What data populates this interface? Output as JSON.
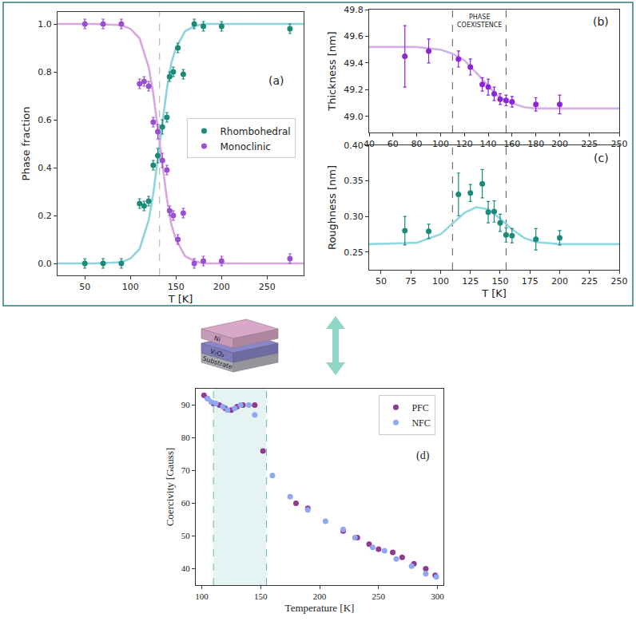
{
  "chart_data": [
    {
      "type": "scatter",
      "panel": "(a)",
      "x_label": "T [K]",
      "y_label": "Phase fraction",
      "xlim": [
        20,
        290
      ],
      "xticks": [
        50,
        100,
        150,
        200,
        250
      ],
      "ylim": [
        -0.05,
        1.05
      ],
      "yticks": [
        {
          "value": 0,
          "label": "0.0"
        },
        0.2,
        0.4,
        0.6,
        0.8,
        {
          "value": 1,
          "label": "1.0"
        }
      ],
      "grid": false,
      "legend": "right",
      "vlines": {
        "x": [
          132
        ],
        "color": "#aaaaaa",
        "line_style": "dashed"
      },
      "series": [
        {
          "type": "line",
          "color": "#8fd3dc",
          "x": [
            20,
            60,
            90,
            100,
            110,
            120,
            125,
            130,
            135,
            140,
            145,
            150,
            160,
            170,
            180,
            200,
            290
          ],
          "values": [
            0,
            0,
            0.005,
            0.02,
            0.06,
            0.18,
            0.29,
            0.44,
            0.59,
            0.73,
            0.84,
            0.9,
            0.97,
            0.99,
            1,
            1,
            1
          ]
        },
        {
          "type": "line",
          "color": "#d9a6e0",
          "x": [
            20,
            60,
            90,
            100,
            110,
            120,
            125,
            130,
            135,
            140,
            145,
            150,
            160,
            170,
            180,
            200,
            290
          ],
          "values": [
            1,
            1,
            0.995,
            0.98,
            0.94,
            0.82,
            0.71,
            0.56,
            0.41,
            0.27,
            0.16,
            0.1,
            0.03,
            0.01,
            0,
            0,
            0
          ]
        },
        {
          "type": "scatter",
          "name": "Rhombohedral",
          "color": "#1b8a78",
          "marker": "circle",
          "x": [
            50,
            70,
            90,
            110,
            115,
            120,
            125,
            130,
            135,
            140,
            143,
            147,
            152,
            158,
            170,
            180,
            200,
            275
          ],
          "values": [
            0,
            0,
            0,
            0.25,
            0.24,
            0.26,
            0.41,
            0.45,
            0.57,
            0.61,
            0.78,
            0.8,
            0.9,
            0.79,
            1.0,
            0.99,
            0.99,
            0.98
          ],
          "errors": [
            0.02,
            0.02,
            0.02,
            0.02,
            0.02,
            0.02,
            0.02,
            0.03,
            0.03,
            0.02,
            0.02,
            0.02,
            0.02,
            0.02,
            0.02,
            0.02,
            0.02,
            0.02
          ]
        },
        {
          "type": "scatter",
          "name": "Monoclinic",
          "color": "#9a4fd0",
          "marker": "circle",
          "x": [
            50,
            70,
            90,
            110,
            115,
            120,
            125,
            130,
            135,
            140,
            143,
            147,
            152,
            158,
            170,
            180,
            200,
            275
          ],
          "values": [
            1,
            1,
            1,
            0.75,
            0.76,
            0.74,
            0.59,
            0.55,
            0.43,
            0.39,
            0.22,
            0.2,
            0.1,
            0.21,
            0.0,
            0.01,
            0.01,
            0.02
          ],
          "errors": [
            0.02,
            0.02,
            0.02,
            0.02,
            0.02,
            0.02,
            0.02,
            0.03,
            0.03,
            0.02,
            0.02,
            0.02,
            0.02,
            0.02,
            0.02,
            0.02,
            0.02,
            0.02
          ]
        }
      ]
    },
    {
      "type": "scatter",
      "panel": "(b)",
      "y_label": "Thickness [nm]",
      "xlim": [
        40,
        250
      ],
      "xticks": [
        40,
        60,
        80,
        100,
        120,
        140,
        160,
        180,
        200,
        225,
        250
      ],
      "ylim": [
        48.88,
        49.8
      ],
      "yticks": [
        {
          "value": 49,
          "label": "49.0"
        },
        49.2,
        49.4,
        49.6,
        49.8
      ],
      "grid": false,
      "vlines": {
        "x": [
          110,
          155
        ],
        "color": "#555555",
        "line_style": "dashed"
      },
      "band_label": "PHASE COEXISTENCE",
      "series": [
        {
          "type": "line",
          "color": "#d4b0e6",
          "x": [
            40,
            80,
            100,
            110,
            120,
            130,
            135,
            140,
            145,
            150,
            160,
            170,
            180,
            200,
            250
          ],
          "values": [
            49.52,
            49.52,
            49.5,
            49.47,
            49.42,
            49.33,
            49.28,
            49.23,
            49.18,
            49.14,
            49.1,
            49.07,
            49.06,
            49.06,
            49.06
          ]
        },
        {
          "type": "scatter",
          "color": "#8e24d8",
          "marker": "circle",
          "x": [
            70,
            90,
            115,
            125,
            135,
            140,
            145,
            150,
            155,
            160,
            180,
            200
          ],
          "values": [
            49.45,
            49.49,
            49.43,
            49.37,
            49.24,
            49.22,
            49.17,
            49.13,
            49.12,
            49.11,
            49.09,
            49.09
          ],
          "errors": [
            0.23,
            0.09,
            0.06,
            0.06,
            0.05,
            0.06,
            0.05,
            0.04,
            0.04,
            0.04,
            0.05,
            0.07
          ]
        }
      ]
    },
    {
      "type": "scatter",
      "panel": "(c)",
      "x_label": "T [K]",
      "y_label": "Roughness [nm]",
      "xlim": [
        40,
        250
      ],
      "xticks": [
        50,
        75,
        100,
        125,
        150,
        175,
        200,
        225,
        250
      ],
      "ylim": [
        0.225,
        0.4
      ],
      "yticks": [
        0.25,
        {
          "value": 0.3,
          "label": "0.30"
        },
        0.35,
        {
          "value": 0.4,
          "label": "0.40"
        }
      ],
      "grid": false,
      "vlines": {
        "x": [
          110,
          155
        ],
        "color": "#555555",
        "line_style": "dashed"
      },
      "series": [
        {
          "type": "line",
          "color": "#8fd8e0",
          "x": [
            40,
            80,
            100,
            110,
            120,
            130,
            140,
            150,
            160,
            170,
            180,
            200,
            250
          ],
          "values": [
            0.261,
            0.263,
            0.275,
            0.29,
            0.305,
            0.313,
            0.31,
            0.297,
            0.282,
            0.27,
            0.264,
            0.261,
            0.261
          ]
        },
        {
          "type": "scatter",
          "color": "#1b8a78",
          "marker": "circle",
          "x": [
            70,
            90,
            115,
            125,
            135,
            140,
            145,
            150,
            155,
            160,
            180,
            200
          ],
          "values": [
            0.28,
            0.279,
            0.331,
            0.333,
            0.346,
            0.306,
            0.307,
            0.291,
            0.274,
            0.273,
            0.268,
            0.27
          ],
          "errors": [
            0.02,
            0.01,
            0.03,
            0.012,
            0.02,
            0.015,
            0.015,
            0.012,
            0.01,
            0.01,
            0.015,
            0.01
          ]
        }
      ]
    },
    {
      "type": "scatter",
      "panel": "(d)",
      "x_label": "Temperature [K]",
      "y_label": "Coercivity [Gauss]",
      "xlim": [
        95,
        305
      ],
      "xticks": [
        100,
        150,
        200,
        250,
        300
      ],
      "ylim": [
        35,
        95
      ],
      "yticks": [
        40,
        50,
        60,
        70,
        80,
        90
      ],
      "grid": false,
      "legend": "top right",
      "band": {
        "x": [
          110,
          155
        ],
        "color": "#5fb8b0",
        "line_style": "dashed"
      },
      "series": [
        {
          "type": "scatter",
          "name": "PFC",
          "color": "#8e3a8e",
          "marker": "circle",
          "x": [
            102,
            105,
            110,
            115,
            120,
            125,
            130,
            135,
            145,
            152,
            180,
            190,
            220,
            232,
            242,
            250,
            262,
            270,
            280,
            290,
            298
          ],
          "values": [
            93,
            92,
            90.5,
            90,
            89,
            88.5,
            89.5,
            90,
            90,
            76,
            60,
            58.5,
            51.5,
            49.5,
            47.5,
            46,
            45,
            43.5,
            41.5,
            40,
            38
          ]
        },
        {
          "type": "scatter",
          "name": "NFC",
          "color": "#8fa8f0",
          "marker": "circle",
          "x": [
            105,
            108,
            112,
            118,
            122,
            128,
            133,
            140,
            145,
            160,
            175,
            190,
            205,
            220,
            230,
            245,
            255,
            265,
            278,
            290,
            299
          ],
          "values": [
            92,
            91,
            90.5,
            89.5,
            88.5,
            89,
            90,
            90,
            87,
            68.5,
            62,
            58,
            54.5,
            52,
            49.5,
            46.5,
            45.5,
            43,
            40.8,
            38.5,
            37.5
          ]
        }
      ]
    }
  ],
  "diagram": {
    "layers": [
      {
        "label": "Substrate",
        "color": "#b9b9c0"
      },
      {
        "label": "V₂O₃",
        "color": "#8a86c8"
      },
      {
        "label": "Ni",
        "color": "#d8a8c8"
      }
    ],
    "arrow_color": "#8fd6c6"
  }
}
